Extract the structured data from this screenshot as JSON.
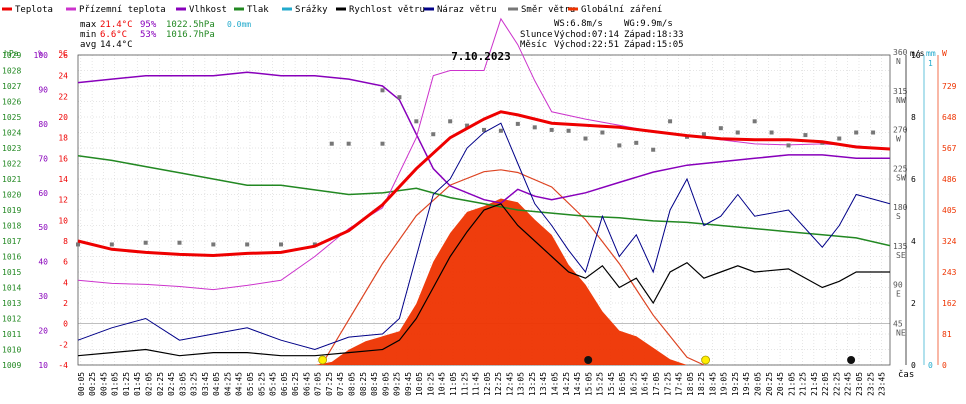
{
  "chart_data": {
    "type": "line",
    "title": "7.10.2023",
    "x_unit_label": "čas",
    "x_ticks": [
      "00:05",
      "00:25",
      "00:45",
      "01:05",
      "01:25",
      "01:45",
      "02:05",
      "02:25",
      "02:45",
      "03:05",
      "03:25",
      "03:45",
      "04:05",
      "04:25",
      "04:45",
      "05:05",
      "05:25",
      "05:45",
      "06:05",
      "06:25",
      "06:45",
      "07:05",
      "07:25",
      "07:45",
      "08:05",
      "08:25",
      "08:45",
      "09:05",
      "09:25",
      "09:45",
      "10:05",
      "10:25",
      "10:45",
      "11:05",
      "11:25",
      "11:45",
      "12:05",
      "12:25",
      "12:45",
      "13:05",
      "13:25",
      "13:45",
      "14:05",
      "14:25",
      "14:45",
      "15:05",
      "15:25",
      "15:45",
      "16:05",
      "16:25",
      "16:45",
      "17:05",
      "17:25",
      "17:45",
      "18:05",
      "18:25",
      "18:45",
      "19:05",
      "19:25",
      "19:45",
      "20:05",
      "20:25",
      "20:45",
      "21:05",
      "21:25",
      "21:45",
      "22:05",
      "22:25",
      "22:45",
      "23:05",
      "23:25",
      "23:45"
    ],
    "legend": [
      {
        "name": "Teplota",
        "color": "#ee0000"
      },
      {
        "name": "Přízemní teplota",
        "color": "#cc33cc"
      },
      {
        "name": "Vlhkost",
        "color": "#8800bb"
      },
      {
        "name": "Tlak",
        "color": "#228822"
      },
      {
        "name": "Srážky",
        "color": "#22aacc"
      },
      {
        "name": "Rychlost větru",
        "color": "#000000"
      },
      {
        "name": "Náraz větru",
        "color": "#000088"
      },
      {
        "name": "Směr větru",
        "color": "#777777"
      },
      {
        "name": "Globální záření",
        "color": "#ee3300"
      }
    ],
    "stats": {
      "max_label": "max",
      "max_temp": "21.4°C",
      "max_hum": "95%",
      "max_press": "1022.5hPa",
      "max_rain": "0.0mm",
      "min_label": "min",
      "min_temp": "6.6°C",
      "min_hum": "53%",
      "min_press": "1016.7hPa",
      "avg_label": "avg",
      "avg_temp": "14.4°C",
      "ws": "WS:6.8m/s",
      "wg": "WG:9.9m/s",
      "sun_label": "Slunce",
      "sun_rise": "Východ:07:14",
      "sun_set": "Západ:18:33",
      "moon_label": "Měsíc",
      "moon_rise": "Východ:22:51",
      "moon_set": "Západ:15:05"
    },
    "axes": {
      "press_unit": "hPa",
      "press_ticks": [
        "1029",
        "1028",
        "1027",
        "1026",
        "1025",
        "1024",
        "1023",
        "1022",
        "1021",
        "1020",
        "1019",
        "1018",
        "1017",
        "1016",
        "1015",
        "1014",
        "1013",
        "1012",
        "1011",
        "1010",
        "1009"
      ],
      "hum_unit": "%",
      "hum_ticks": [
        "100",
        "90",
        "80",
        "70",
        "60",
        "50",
        "40",
        "30",
        "20",
        "10"
      ],
      "temp_unit": "°C",
      "temp_ticks": [
        "26",
        "24",
        "22",
        "20",
        "18",
        "16",
        "14",
        "12",
        "10",
        "8",
        "6",
        "4",
        "2",
        "0",
        "-2",
        "-4"
      ],
      "dir_unit": "m/s",
      "dir_ticks": [
        {
          "deg": "360",
          "dir": "N"
        },
        {
          "deg": "315",
          "dir": "NW"
        },
        {
          "deg": "270",
          "dir": "W"
        },
        {
          "deg": "225",
          "dir": "SW"
        },
        {
          "deg": "180",
          "dir": "S"
        },
        {
          "deg": "135",
          "dir": "SE"
        },
        {
          "deg": "90",
          "dir": "E"
        },
        {
          "deg": "45",
          "dir": "NE"
        }
      ],
      "wind_ticks": [
        "10",
        "8",
        "6",
        "4",
        "2",
        "0"
      ],
      "rain_unit": "mm",
      "rain_ticks": [
        "1",
        "0"
      ],
      "rad_unit": "W",
      "rad_ticks": [
        "729",
        "648",
        "567",
        "486",
        "405",
        "324",
        "243",
        "162",
        "81",
        "0"
      ]
    },
    "temperature": [
      [
        0,
        8.0
      ],
      [
        1,
        7.2
      ],
      [
        2,
        6.9
      ],
      [
        3,
        6.7
      ],
      [
        4,
        6.6
      ],
      [
        5,
        6.8
      ],
      [
        6,
        6.9
      ],
      [
        7,
        7.5
      ],
      [
        8,
        9.0
      ],
      [
        9,
        11.5
      ],
      [
        10,
        15.0
      ],
      [
        11,
        18.0
      ],
      [
        12,
        19.8
      ],
      [
        12.5,
        20.5
      ],
      [
        13,
        20.2
      ],
      [
        14,
        19.4
      ],
      [
        15,
        19.2
      ],
      [
        16,
        19.0
      ],
      [
        17,
        18.6
      ],
      [
        18,
        18.2
      ],
      [
        19,
        17.9
      ],
      [
        20,
        17.8
      ],
      [
        21,
        17.8
      ],
      [
        22,
        17.6
      ],
      [
        23,
        17.1
      ],
      [
        24,
        16.9
      ]
    ],
    "ground_temperature": [
      [
        0,
        4.2
      ],
      [
        1,
        3.9
      ],
      [
        2,
        3.8
      ],
      [
        3,
        3.6
      ],
      [
        4,
        3.3
      ],
      [
        5,
        3.7
      ],
      [
        6,
        4.2
      ],
      [
        7,
        6.5
      ],
      [
        8,
        9.2
      ],
      [
        9,
        11.2
      ],
      [
        10,
        18.0
      ],
      [
        10.5,
        24.0
      ],
      [
        11,
        24.5
      ],
      [
        12,
        24.5
      ],
      [
        12.5,
        29.5
      ],
      [
        13,
        27.0
      ],
      [
        13.5,
        23.5
      ],
      [
        14,
        20.5
      ],
      [
        15,
        19.8
      ],
      [
        16,
        19.2
      ],
      [
        17,
        18.6
      ],
      [
        18,
        18.2
      ],
      [
        19,
        17.8
      ],
      [
        20,
        17.4
      ],
      [
        21,
        17.3
      ],
      [
        22,
        17.4
      ],
      [
        23,
        17.2
      ],
      [
        24,
        16.9
      ]
    ],
    "humidity": [
      [
        0,
        92
      ],
      [
        1,
        93
      ],
      [
        2,
        94
      ],
      [
        3,
        94
      ],
      [
        4,
        94
      ],
      [
        5,
        95
      ],
      [
        6,
        94
      ],
      [
        7,
        94
      ],
      [
        8,
        93
      ],
      [
        9,
        91
      ],
      [
        9.5,
        87
      ],
      [
        10,
        77
      ],
      [
        10.5,
        67
      ],
      [
        11,
        62
      ],
      [
        12,
        58
      ],
      [
        12.5,
        57
      ],
      [
        13,
        61
      ],
      [
        13.5,
        59
      ],
      [
        14,
        58
      ],
      [
        15,
        60
      ],
      [
        16,
        63
      ],
      [
        17,
        66
      ],
      [
        18,
        68
      ],
      [
        19,
        69
      ],
      [
        20,
        70
      ],
      [
        21,
        71
      ],
      [
        22,
        71
      ],
      [
        23,
        70
      ],
      [
        24,
        70
      ]
    ],
    "pressure": [
      [
        0,
        1022.5
      ],
      [
        1,
        1022.2
      ],
      [
        2,
        1021.8
      ],
      [
        3,
        1021.4
      ],
      [
        4,
        1021.0
      ],
      [
        5,
        1020.6
      ],
      [
        6,
        1020.6
      ],
      [
        7,
        1020.3
      ],
      [
        8,
        1020.0
      ],
      [
        9,
        1020.1
      ],
      [
        10,
        1020.4
      ],
      [
        11,
        1019.8
      ],
      [
        12,
        1019.4
      ],
      [
        13,
        1019.0
      ],
      [
        14,
        1018.8
      ],
      [
        15,
        1018.6
      ],
      [
        16,
        1018.5
      ],
      [
        17,
        1018.3
      ],
      [
        18,
        1018.2
      ],
      [
        19,
        1018.0
      ],
      [
        20,
        1017.8
      ],
      [
        21,
        1017.6
      ],
      [
        22,
        1017.4
      ],
      [
        23,
        1017.2
      ],
      [
        24,
        1016.7
      ]
    ],
    "wind_speed": [
      [
        0,
        0.3
      ],
      [
        1,
        0.4
      ],
      [
        2,
        0.5
      ],
      [
        3,
        0.3
      ],
      [
        4,
        0.4
      ],
      [
        5,
        0.4
      ],
      [
        6,
        0.3
      ],
      [
        7,
        0.3
      ],
      [
        8,
        0.4
      ],
      [
        9,
        0.5
      ],
      [
        9.5,
        0.8
      ],
      [
        10,
        1.5
      ],
      [
        10.5,
        2.5
      ],
      [
        11,
        3.5
      ],
      [
        11.5,
        4.3
      ],
      [
        12,
        5.0
      ],
      [
        12.5,
        5.2
      ],
      [
        13,
        4.5
      ],
      [
        13.5,
        4.0
      ],
      [
        14,
        3.5
      ],
      [
        14.5,
        3.0
      ],
      [
        15,
        2.8
      ],
      [
        15.5,
        3.2
      ],
      [
        16,
        2.5
      ],
      [
        16.5,
        2.8
      ],
      [
        17,
        2.0
      ],
      [
        17.5,
        3.0
      ],
      [
        18,
        3.3
      ],
      [
        18.5,
        2.8
      ],
      [
        19,
        3.0
      ],
      [
        19.5,
        3.2
      ],
      [
        20,
        3.0
      ],
      [
        21,
        3.1
      ],
      [
        22,
        2.5
      ],
      [
        22.5,
        2.7
      ],
      [
        23,
        3.0
      ],
      [
        24,
        3.0
      ]
    ],
    "wind_gust": [
      [
        0,
        0.8
      ],
      [
        1,
        1.2
      ],
      [
        2,
        1.5
      ],
      [
        3,
        0.8
      ],
      [
        4,
        1.0
      ],
      [
        5,
        1.2
      ],
      [
        6,
        0.8
      ],
      [
        7,
        0.5
      ],
      [
        8,
        0.9
      ],
      [
        9,
        1.0
      ],
      [
        9.5,
        1.5
      ],
      [
        10,
        3.5
      ],
      [
        10.5,
        5.5
      ],
      [
        11,
        6.0
      ],
      [
        11.5,
        7.0
      ],
      [
        12,
        7.5
      ],
      [
        12.5,
        7.8
      ],
      [
        13,
        6.5
      ],
      [
        13.5,
        5.2
      ],
      [
        14,
        4.5
      ],
      [
        14.5,
        3.7
      ],
      [
        15,
        3.0
      ],
      [
        15.5,
        4.8
      ],
      [
        16,
        3.5
      ],
      [
        16.5,
        4.2
      ],
      [
        17,
        3.0
      ],
      [
        17.5,
        5.0
      ],
      [
        18,
        6.0
      ],
      [
        18.5,
        4.5
      ],
      [
        19,
        4.8
      ],
      [
        19.5,
        5.5
      ],
      [
        20,
        4.8
      ],
      [
        21,
        5.0
      ],
      [
        22,
        3.8
      ],
      [
        22.5,
        4.5
      ],
      [
        23,
        5.5
      ],
      [
        24,
        5.2
      ]
    ],
    "wind_direction": [
      [
        0,
        140
      ],
      [
        1,
        140
      ],
      [
        2,
        142
      ],
      [
        3,
        142
      ],
      [
        4,
        140
      ],
      [
        5,
        140
      ],
      [
        6,
        140
      ],
      [
        7,
        140
      ],
      [
        7.5,
        257
      ],
      [
        8,
        257
      ],
      [
        9,
        257
      ],
      [
        9,
        319
      ],
      [
        9.5,
        311
      ],
      [
        10,
        283
      ],
      [
        10.5,
        268
      ],
      [
        11,
        283
      ],
      [
        11.5,
        278
      ],
      [
        12,
        273
      ],
      [
        12.5,
        272
      ],
      [
        13,
        280
      ],
      [
        13.5,
        276
      ],
      [
        14,
        273
      ],
      [
        14.5,
        272
      ],
      [
        15,
        263
      ],
      [
        15.5,
        270
      ],
      [
        16,
        255
      ],
      [
        16.5,
        258
      ],
      [
        17,
        250
      ],
      [
        17.5,
        283
      ],
      [
        18,
        265
      ],
      [
        18.5,
        268
      ],
      [
        19,
        275
      ],
      [
        19.5,
        270
      ],
      [
        20,
        283
      ],
      [
        20.5,
        270
      ],
      [
        21,
        255
      ],
      [
        21.5,
        267
      ],
      [
        22,
        258
      ],
      [
        22.5,
        263
      ],
      [
        23,
        270
      ],
      [
        23.5,
        270
      ]
    ],
    "global_radiation": [
      [
        7.0,
        0
      ],
      [
        7.5,
        8
      ],
      [
        8,
        40
      ],
      [
        8.5,
        62
      ],
      [
        9,
        75
      ],
      [
        9.5,
        88
      ],
      [
        10,
        160
      ],
      [
        10.5,
        270
      ],
      [
        11,
        345
      ],
      [
        11.5,
        400
      ],
      [
        12,
        415
      ],
      [
        12.5,
        435
      ],
      [
        13,
        425
      ],
      [
        13.5,
        380
      ],
      [
        14,
        340
      ],
      [
        14.5,
        262
      ],
      [
        15,
        210
      ],
      [
        15.5,
        140
      ],
      [
        16,
        90
      ],
      [
        16.5,
        75
      ],
      [
        17,
        45
      ],
      [
        17.5,
        15
      ],
      [
        18,
        0
      ]
    ],
    "radiation_clear_sky": [
      [
        7.2,
        0
      ],
      [
        8,
        118
      ],
      [
        9,
        265
      ],
      [
        10,
        390
      ],
      [
        11,
        470
      ],
      [
        12,
        505
      ],
      [
        12.5,
        510
      ],
      [
        13,
        503
      ],
      [
        14,
        465
      ],
      [
        15,
        380
      ],
      [
        16,
        265
      ],
      [
        17,
        130
      ],
      [
        18,
        20
      ],
      [
        18.5,
        0
      ]
    ],
    "rain": [],
    "x_range": [
      0,
      24
    ],
    "temp_range": [
      -4,
      26
    ],
    "hum_range": [
      10,
      100
    ],
    "press_range": [
      1009,
      1029
    ],
    "dir_range": [
      0,
      360
    ],
    "wind_range": [
      0,
      10
    ],
    "rad_range": [
      0,
      810
    ],
    "grid": true
  }
}
